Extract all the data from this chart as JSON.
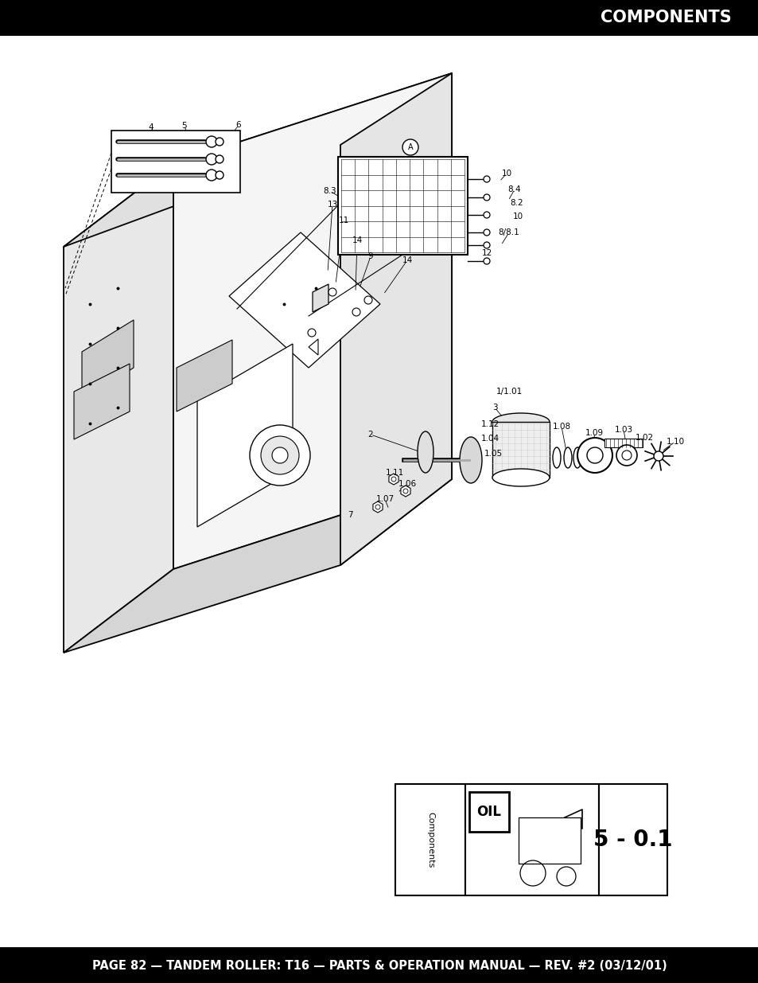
{
  "title_text": "COMPONENTS",
  "footer_text": "PAGE 82 — TANDEM ROLLER: T16 — PARTS & OPERATION MANUAL — REV. #2 (03/12/01)",
  "section_label": "Components",
  "section_code": "5 - 0.1",
  "bg_color": "#ffffff",
  "header_bg": "#000000",
  "footer_bg": "#000000",
  "header_text_color": "#ffffff",
  "footer_text_color": "#ffffff",
  "title_fontsize": 15,
  "footer_fontsize": 10.5
}
